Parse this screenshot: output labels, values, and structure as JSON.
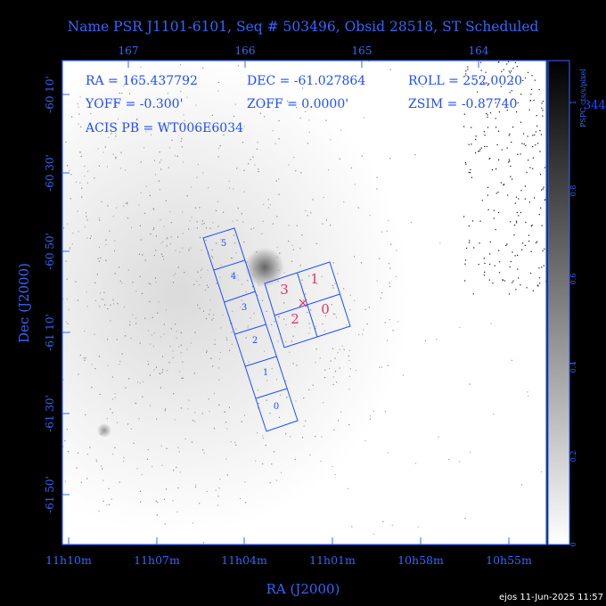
{
  "title": "Name PSR J1101-6101, Seq # 503496, Obsid 28518, ST Scheduled",
  "top_ticks": [
    "167",
    "166",
    "165",
    "164"
  ],
  "bottom_ticks": [
    "11h10m",
    "11h07m",
    "11h04m",
    "11h01m",
    "10h58m",
    "10h55m"
  ],
  "left_ticks": [
    "-60 10'",
    "-60 30'",
    "-60 50'",
    "-61 10'",
    "-61 30'",
    "-61 50'"
  ],
  "xlabel": "RA (J2000)",
  "ylabel": "Dec (J2000)",
  "colorbar": {
    "label": "PSPC cts/s/pixel",
    "ticks": [
      "0",
      "0.2",
      "0.4",
      "0.6",
      "0.8",
      "1"
    ]
  },
  "info": {
    "ra": "RA = 165.437792",
    "dec": "DEC = -61.027864",
    "roll": "ROLL = 252.0020",
    "yoff": "YOFF =  -0.300'",
    "zoff": "ZOFF =  0.0000'",
    "zsim": "ZSIM = -0.87740",
    "acis_pb": "ACIS PB = WT006E6034",
    "overflow": "344"
  },
  "acis_s_chips": [
    "5",
    "4",
    "3",
    "2",
    "1",
    "0"
  ],
  "acis_i_chips": [
    "3",
    "1",
    "2",
    "0"
  ],
  "colors": {
    "frame": "#3366ff",
    "chip_label": "#e0306a",
    "background": "#000000"
  },
  "footer": "ejos 11-Jun-2025 11:57"
}
